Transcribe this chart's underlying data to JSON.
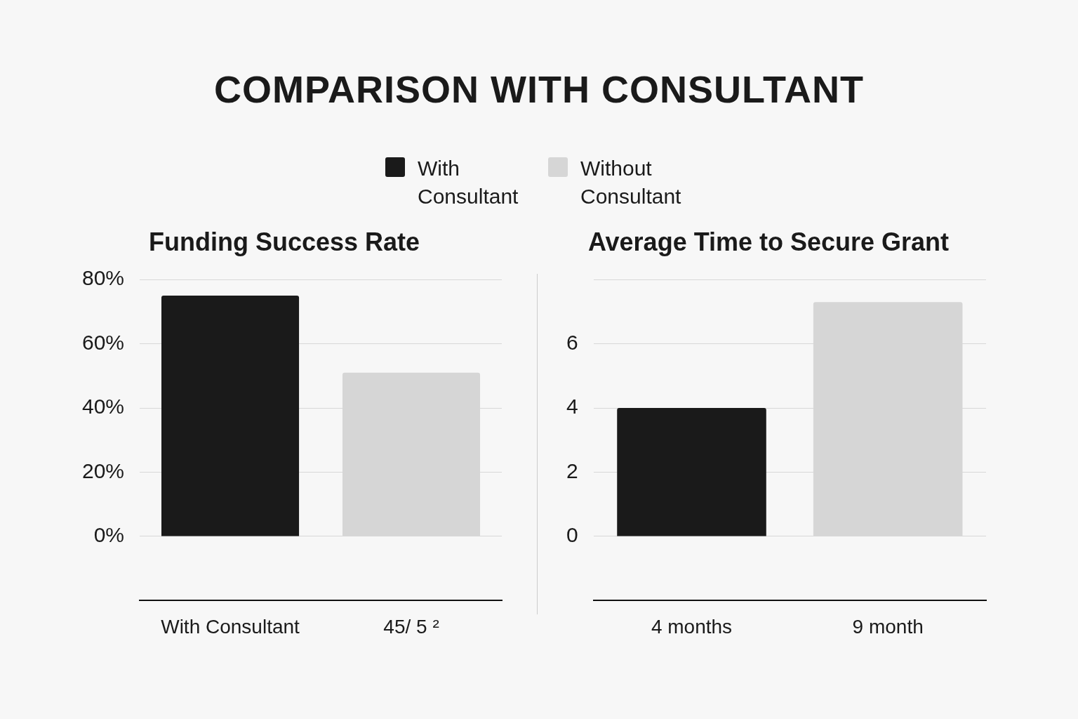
{
  "chart_data": [
    {
      "type": "bar",
      "title": "COMPARISON WITH CONSULTANT",
      "subtitle": "Funding Success Rate",
      "categories": [
        "With Consultant",
        "45/ 5 ²"
      ],
      "series": [
        {
          "name": "With Consultant",
          "color": "#1a1a1a",
          "values": [
            75,
            null
          ]
        },
        {
          "name": "Without Consultant",
          "color": "#d6d6d6",
          "values": [
            null,
            51
          ]
        }
      ],
      "ylim": [
        -20,
        80
      ],
      "yticks": [
        {
          "value": 0,
          "label": "0%"
        },
        {
          "value": 20,
          "label": "20%"
        },
        {
          "value": 40,
          "label": "40%"
        },
        {
          "value": 60,
          "label": "60%"
        },
        {
          "value": 80,
          "label": "80%"
        }
      ],
      "grid": "y",
      "legend": "top"
    },
    {
      "type": "bar",
      "title": "Average Time to Secure Grant",
      "categories": [
        "4 months",
        "9 month"
      ],
      "values": [
        4,
        7.3
      ],
      "colors": [
        "#1a1a1a",
        "#d6d6d6"
      ],
      "ylim": [
        -2,
        8
      ],
      "yticks": [
        0,
        2,
        4,
        6,
        {
          "value": 8,
          "label": null
        }
      ],
      "grid": "y"
    }
  ]
}
